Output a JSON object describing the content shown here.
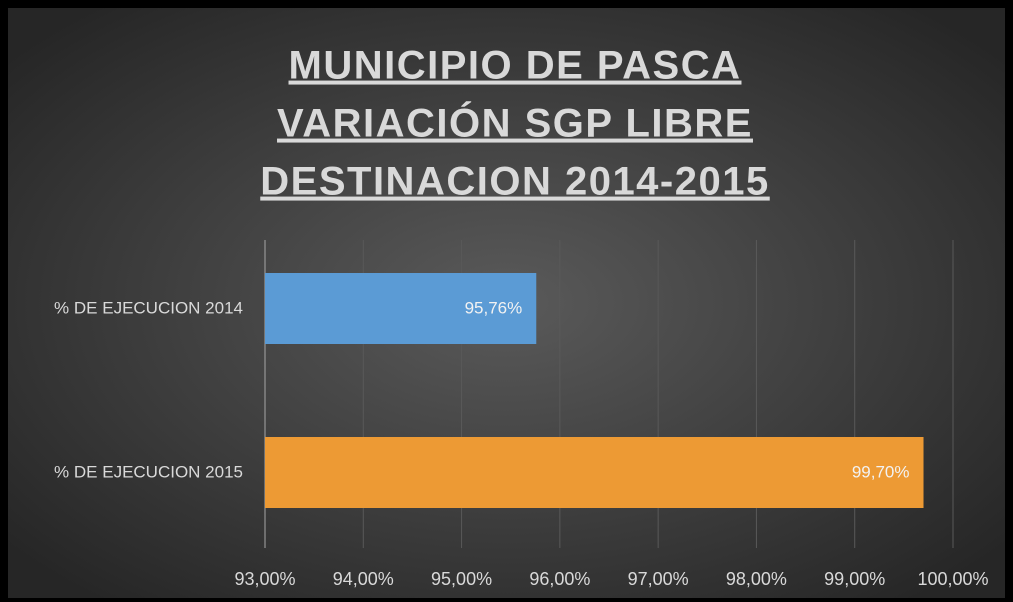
{
  "chart_data": {
    "type": "barh",
    "title": [
      "MUNICIPIO  DE PASCA",
      "VARIACIÓN  SGP  LIBRE",
      "DESTINACION  2014-2015"
    ],
    "categories": [
      "% DE EJECUCION 2014",
      "% DE EJECUCION 2015"
    ],
    "values": [
      95.76,
      99.7
    ],
    "value_labels": [
      "95,76%",
      "99,70%"
    ],
    "colors": [
      "#5b9bd5",
      "#ed9a34"
    ],
    "xlim": [
      93,
      100
    ],
    "xticks": [
      {
        "value": 93,
        "label": "93,00%"
      },
      {
        "value": 94,
        "label": "94,00%"
      },
      {
        "value": 95,
        "label": "95,00%"
      },
      {
        "value": 96,
        "label": "96,00%"
      },
      {
        "value": 97,
        "label": "97,00%"
      },
      {
        "value": 98,
        "label": "98,00%"
      },
      {
        "value": 99,
        "label": "99,00%"
      },
      {
        "value": 100,
        "label": "100,00%"
      }
    ],
    "grid": true
  }
}
